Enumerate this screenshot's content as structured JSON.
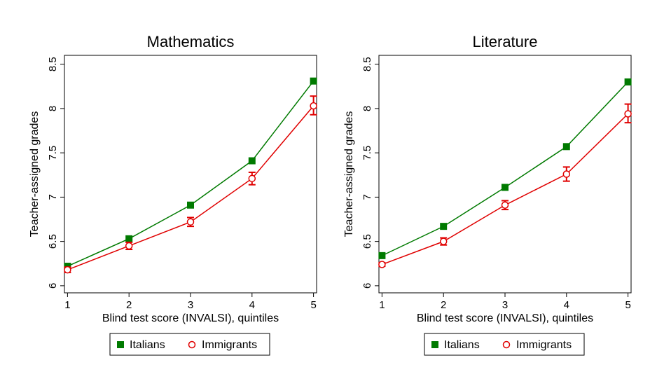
{
  "colors": {
    "italians": "#007a00",
    "immigrants": "#e00000"
  },
  "chart_data": [
    {
      "type": "line",
      "title": "Mathematics",
      "xlabel": "Blind test score (INVALSI), quintiles",
      "ylabel": "Teacher-assigned grades",
      "x": [
        1,
        2,
        3,
        4,
        5
      ],
      "xticks": [
        "1",
        "2",
        "3",
        "4",
        "5"
      ],
      "xlim": [
        0.95,
        5.05
      ],
      "ylim": [
        5.92,
        8.6
      ],
      "yticks": [
        "6",
        "6.5",
        "7",
        "7.5",
        "8",
        "8.5"
      ],
      "ytick_values": [
        6,
        6.5,
        7,
        7.5,
        8,
        8.5
      ],
      "grid": false,
      "legend": "bottom",
      "series": [
        {
          "name": "Italians",
          "marker": "square",
          "values": [
            6.22,
            6.53,
            6.91,
            7.41,
            8.31
          ]
        },
        {
          "name": "Immigrants",
          "marker": "circle",
          "values": [
            6.18,
            6.45,
            6.72,
            7.21,
            8.03
          ],
          "ci_low": [
            6.15,
            6.41,
            6.67,
            7.14,
            7.93
          ],
          "ci_high": [
            6.21,
            6.49,
            6.77,
            7.28,
            8.14
          ]
        }
      ]
    },
    {
      "type": "line",
      "title": "Literature",
      "xlabel": "Blind test score (INVALSI), quintiles",
      "ylabel": "Teacher-assigned grades",
      "x": [
        1,
        2,
        3,
        4,
        5
      ],
      "xticks": [
        "1",
        "2",
        "3",
        "4",
        "5"
      ],
      "xlim": [
        0.95,
        5.05
      ],
      "ylim": [
        5.92,
        8.6
      ],
      "yticks": [
        "6",
        "6.5",
        "7",
        "7.5",
        "8",
        "8.5"
      ],
      "ytick_values": [
        6,
        6.5,
        7,
        7.5,
        8,
        8.5
      ],
      "grid": false,
      "legend": "bottom",
      "series": [
        {
          "name": "Italians",
          "marker": "square",
          "values": [
            6.34,
            6.67,
            7.11,
            7.57,
            8.3
          ]
        },
        {
          "name": "Immigrants",
          "marker": "circle",
          "values": [
            6.24,
            6.5,
            6.91,
            7.26,
            7.94
          ],
          "ci_low": [
            6.22,
            6.46,
            6.86,
            7.18,
            7.84
          ],
          "ci_high": [
            6.26,
            6.54,
            6.96,
            7.34,
            8.05
          ]
        }
      ]
    }
  ]
}
